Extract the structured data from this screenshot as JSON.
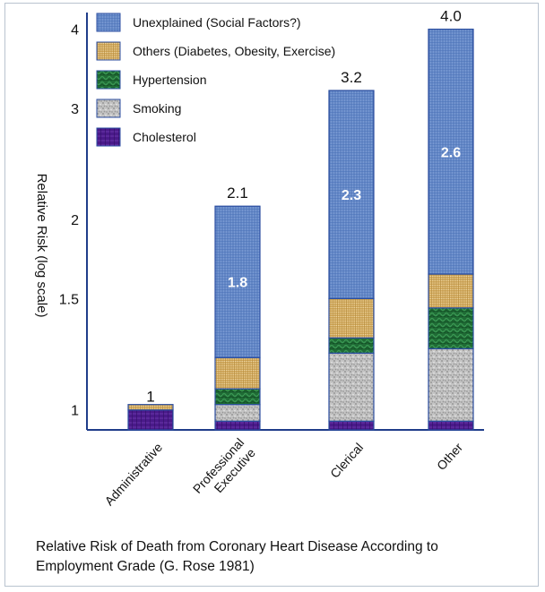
{
  "caption": {
    "line1": "Relative Risk of Death from Coronary Heart Disease According to",
    "line2": "Employment Grade (G. Rose 1981)"
  },
  "chart_data": {
    "type": "bar",
    "stacked": true,
    "y_scale": "log",
    "ylabel": "Relative Risk (log scale)",
    "ylim": [
      0.93,
      4.25
    ],
    "y_ticks": [
      {
        "value": 1,
        "label": "1"
      },
      {
        "value": 1.5,
        "label": "1.5"
      },
      {
        "value": 2,
        "label": "2"
      },
      {
        "value": 3,
        "label": "3"
      },
      {
        "value": 4,
        "label": "4"
      }
    ],
    "categories": [
      "Administrative",
      "Professional Executive",
      "Clerical",
      "Other"
    ],
    "totals": [
      1,
      2.1,
      3.2,
      4.0
    ],
    "total_labels": [
      "1",
      "2.1",
      "3.2",
      "4.0"
    ],
    "legend_position": "top-left",
    "series": [
      {
        "name": "Cholesterol",
        "color": "#4a1a8a",
        "pattern": "chol",
        "tops": [
          1.0,
          0.96,
          0.96,
          0.96
        ]
      },
      {
        "name": "Smoking",
        "color": "#b9b9b9",
        "pattern": "smok",
        "tops": [
          1.0,
          1.02,
          1.23,
          1.25
        ]
      },
      {
        "name": "Hypertension",
        "color": "#1f6b35",
        "pattern": "hyp",
        "tops": [
          1.0,
          1.08,
          1.3,
          1.45
        ]
      },
      {
        "name": "Others (Diabetes, Obesity, Exercise)",
        "color": "#d9b267",
        "pattern": "oth",
        "tops": [
          1.02,
          1.21,
          1.5,
          1.64
        ]
      },
      {
        "name": "Unexplained (Social Factors?)",
        "color": "#5f84c6",
        "pattern": "unex",
        "tops": [
          1.02,
          2.1,
          3.2,
          4.0
        ],
        "labels": [
          "",
          "1.8",
          "2.3",
          "2.6"
        ]
      }
    ],
    "legend_order": [
      "Unexplained (Social Factors?)",
      "Others (Diabetes, Obesity, Exercise)",
      "Hypertension",
      "Smoking",
      "Cholesterol"
    ]
  }
}
